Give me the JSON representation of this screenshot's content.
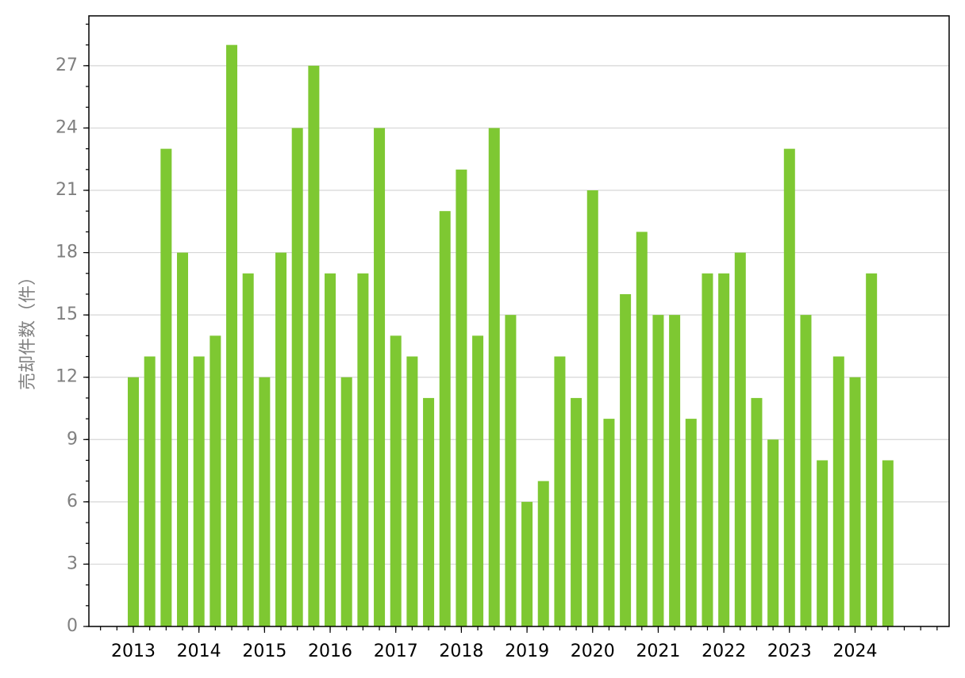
{
  "chart_data": {
    "type": "bar",
    "y_label": "売却件数（件）",
    "categories": [
      "2013",
      null,
      null,
      null,
      "2014",
      null,
      null,
      null,
      "2015",
      null,
      null,
      null,
      "2016",
      null,
      null,
      null,
      "2017",
      null,
      null,
      null,
      "2018",
      null,
      null,
      null,
      "2019",
      null,
      null,
      null,
      "2020",
      null,
      null,
      null,
      "2021",
      null,
      null,
      null,
      "2022",
      null,
      null,
      null,
      "2023",
      null,
      null,
      null,
      "2024",
      null,
      null
    ],
    "values": [
      12,
      13,
      23,
      18,
      13,
      14,
      28,
      17,
      12,
      18,
      24,
      27,
      17,
      12,
      17,
      24,
      14,
      13,
      11,
      20,
      22,
      14,
      24,
      15,
      6,
      7,
      13,
      11,
      21,
      10,
      16,
      19,
      15,
      15,
      10,
      17,
      17,
      18,
      11,
      9,
      23,
      15,
      8,
      13,
      12,
      17,
      8
    ],
    "color": "#7ec832",
    "ylim": [
      0,
      29.4
    ],
    "yticks": [
      0,
      3,
      6,
      9,
      12,
      15,
      18,
      21,
      24,
      27
    ],
    "grid": true
  }
}
